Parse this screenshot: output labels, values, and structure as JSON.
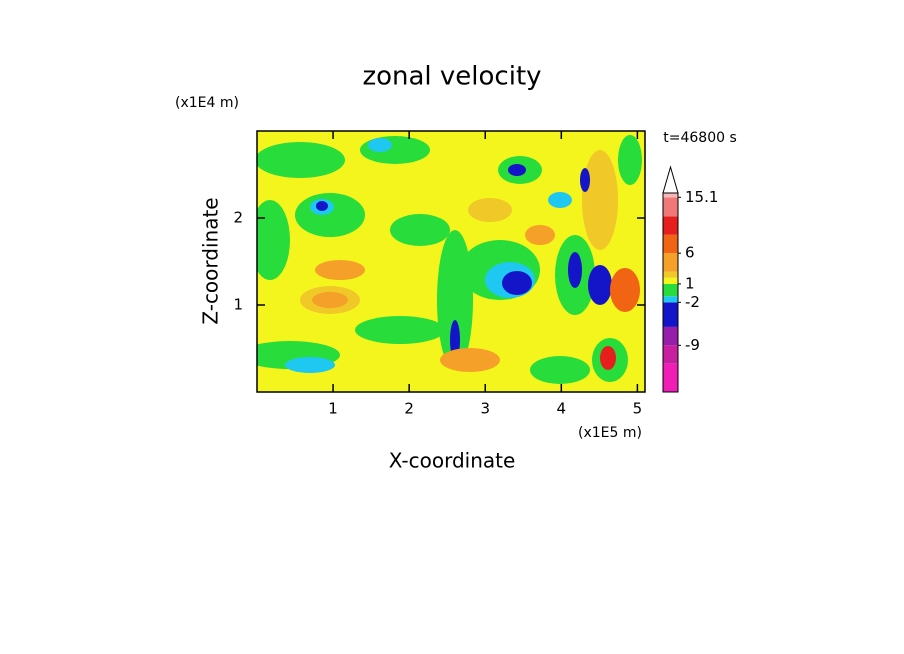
{
  "chart_data": {
    "type": "contour",
    "title": "zonal velocity",
    "xlabel": "X-coordinate",
    "ylabel": "Z-coordinate",
    "x_unit": "(x1E5 m)",
    "y_unit": "(x1E4 m)",
    "annotation": "t=46800 s",
    "xlim": [
      0,
      5.1
    ],
    "xticks": [
      1,
      2,
      3,
      4,
      5
    ],
    "ylim": [
      0,
      3
    ],
    "yticks": [
      1,
      2
    ],
    "colorbar": {
      "lim": [
        -16.6,
        15.8
      ],
      "levels": [
        -12,
        -9,
        -6,
        -2,
        -1,
        1,
        2,
        3,
        6,
        9,
        12,
        15.1
      ],
      "colors": [
        "#f01eb4",
        "#c81ea0",
        "#961eaa",
        "#1414c8",
        "#1ec8f0",
        "#28dc3c",
        "#f5f51e",
        "#f0c828",
        "#f5a028",
        "#f06414",
        "#e61e1e",
        "#f07878",
        "#f5b9b9"
      ],
      "ticks": [
        15.1,
        6,
        1,
        -2,
        -9
      ]
    }
  }
}
